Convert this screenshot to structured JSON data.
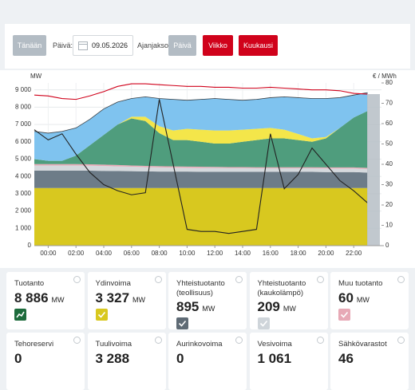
{
  "toolbar": {
    "today": "Tänään",
    "day_label": "Päivä:",
    "date": "09.05.2026",
    "period_label": "Ajanjakso:",
    "periods": [
      "Päivä",
      "Viikko",
      "Kuukausi"
    ],
    "active_period": 0
  },
  "chart_data": {
    "type": "area",
    "stacked": true,
    "y_label": "MW",
    "y2_label": "€ / MWh",
    "x": [
      -1,
      0,
      1,
      2,
      3,
      4,
      5,
      6,
      7,
      8,
      9,
      10,
      11,
      12,
      13,
      14,
      15,
      16,
      17,
      18,
      19,
      20,
      21,
      22,
      23
    ],
    "xlim": [
      -1,
      24
    ],
    "xticks": [
      {
        "value": 0,
        "label": "00:00"
      },
      {
        "value": 2,
        "label": "02:00"
      },
      {
        "value": 4,
        "label": "04:00"
      },
      {
        "value": 6,
        "label": "06:00"
      },
      {
        "value": 8,
        "label": "08:00"
      },
      {
        "value": 10,
        "label": "10:00"
      },
      {
        "value": 12,
        "label": "12:00"
      },
      {
        "value": 14,
        "label": "14:00"
      },
      {
        "value": 16,
        "label": "16:00"
      },
      {
        "value": 18,
        "label": "18:00"
      },
      {
        "value": 20,
        "label": "20:00"
      },
      {
        "value": 22,
        "label": "22:00"
      }
    ],
    "ylim": [
      0,
      9400
    ],
    "yticks": [
      0,
      {
        "value": 1000,
        "label": "1 000"
      },
      {
        "value": 2000,
        "label": "2 000"
      },
      {
        "value": 3000,
        "label": "3 000"
      },
      {
        "value": 4000,
        "label": "4 000"
      },
      {
        "value": 5000,
        "label": "5 000"
      },
      {
        "value": 6000,
        "label": "6 000"
      },
      {
        "value": 7000,
        "label": "7 000"
      },
      {
        "value": 8000,
        "label": "8 000"
      },
      {
        "value": 9000,
        "label": "9 000"
      }
    ],
    "y2lim": [
      0,
      80
    ],
    "y2ticks": [
      0,
      10,
      20,
      30,
      40,
      50,
      60,
      70,
      80
    ],
    "grid": true,
    "series": [
      {
        "color": "#d8c81f",
        "values": [
          3330,
          3330,
          3330,
          3330,
          3330,
          3330,
          3330,
          3330,
          3330,
          3330,
          3330,
          3330,
          3330,
          3330,
          3330,
          3330,
          3330,
          3330,
          3330,
          3330,
          3330,
          3330,
          3330,
          3330,
          3327
        ]
      },
      {
        "color": "#6d7c88",
        "values": [
          1000,
          1000,
          1000,
          1000,
          1000,
          990,
          980,
          970,
          960,
          950,
          950,
          950,
          940,
          940,
          940,
          940,
          930,
          930,
          930,
          930,
          930,
          920,
          920,
          920,
          895
        ]
      },
      {
        "color": "#d5d9dd",
        "values": [
          300,
          300,
          300,
          300,
          290,
          280,
          270,
          260,
          250,
          240,
          230,
          220,
          220,
          220,
          210,
          210,
          210,
          210,
          210,
          210,
          210,
          210,
          210,
          209,
          209
        ]
      },
      {
        "color": "#e7a9b6",
        "values": [
          80,
          80,
          80,
          80,
          80,
          80,
          80,
          70,
          70,
          70,
          70,
          70,
          70,
          60,
          60,
          60,
          60,
          60,
          60,
          60,
          60,
          60,
          60,
          60,
          60
        ]
      },
      {
        "color": "#4f9d7d",
        "values": [
          290,
          190,
          190,
          490,
          1100,
          1720,
          2340,
          2720,
          2590,
          1910,
          1520,
          1530,
          1440,
          1350,
          1360,
          1460,
          1570,
          1670,
          1670,
          1570,
          1470,
          1680,
          2280,
          2881,
          3288
        ]
      },
      {
        "color": "#f4e64a",
        "values": [
          0,
          0,
          0,
          0,
          0,
          0,
          0,
          100,
          250,
          400,
          550,
          650,
          700,
          750,
          750,
          700,
          650,
          600,
          500,
          350,
          200,
          80,
          0,
          0,
          0
        ]
      },
      {
        "color": "#7fc3ef",
        "stroke": "#3a3f44",
        "values": [
          1600,
          1600,
          1700,
          1600,
          1500,
          1500,
          1300,
          1050,
          1150,
          1600,
          1800,
          1650,
          1750,
          1850,
          1800,
          1700,
          1700,
          1750,
          1900,
          2100,
          2300,
          2220,
          1750,
          1300,
          1061
        ]
      },
      {
        "type": "line",
        "color": "#d0021b",
        "values": [
          8700,
          8650,
          8500,
          8450,
          8650,
          8900,
          9200,
          9350,
          9350,
          9300,
          9250,
          9200,
          9200,
          9150,
          9150,
          9100,
          9100,
          9150,
          9100,
          9050,
          9000,
          9000,
          8950,
          8800,
          8750
        ]
      },
      {
        "type": "line",
        "axis": "y2",
        "color": "#222222",
        "values": [
          57,
          52,
          55,
          45,
          36,
          30,
          27,
          25,
          26,
          72,
          40,
          8,
          7,
          7,
          6,
          7,
          8,
          55,
          28,
          35,
          48,
          40,
          32,
          27,
          21
        ]
      }
    ]
  },
  "cards": [
    {
      "title": "Tuotanto",
      "value": "8 886",
      "unit": "MW",
      "color": "#1d6b3c"
    },
    {
      "title": "Ydinvoima",
      "value": "3 327",
      "unit": "MW",
      "color": "#d8c81f"
    },
    {
      "title": "Yhteistuotanto (teollisuus)",
      "value": "895",
      "unit": "MW",
      "color": "#5f6b75"
    },
    {
      "title": "Yhteistuotanto (kaukolämpö)",
      "value": "209",
      "unit": "MW",
      "color": "#cfd5da"
    },
    {
      "title": "Muu tuotanto",
      "value": "60",
      "unit": "MW",
      "color": "#e7a9b6"
    },
    {
      "title": "Tehoreservi",
      "value": "0"
    },
    {
      "title": "Tuulivoima",
      "value": "3 288"
    },
    {
      "title": "Aurinkovoima",
      "value": "0"
    },
    {
      "title": "Vesivoima",
      "value": "1 061"
    },
    {
      "title": "Sähkövarastot",
      "value": "46"
    }
  ]
}
